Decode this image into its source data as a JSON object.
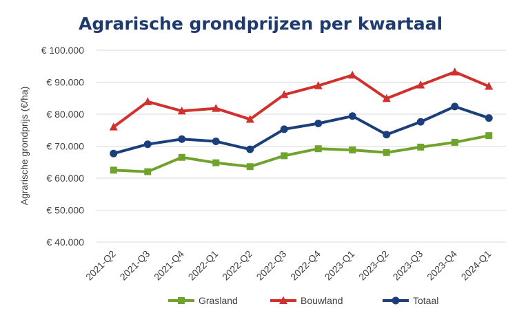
{
  "chart_data": {
    "type": "line",
    "title": "Agrarische grondprijzen per kwartaal",
    "xlabel": "",
    "ylabel": "Agrarische grondprijs (€/ha)",
    "ylim": [
      40000,
      100000
    ],
    "yticks": [
      40000,
      50000,
      60000,
      70000,
      80000,
      90000,
      100000
    ],
    "ytick_labels": [
      "€ 40.000",
      "€ 50.000",
      "€ 60.000",
      "€ 70.000",
      "€ 80.000",
      "€ 90.000",
      "€ 100.000"
    ],
    "grid": true,
    "legend_position": "bottom",
    "categories": [
      "2021-Q2",
      "2021-Q3",
      "2021-Q4",
      "2022-Q1",
      "2022-Q2",
      "2022-Q3",
      "2022-Q4",
      "2023-Q1",
      "2023-Q2",
      "2023-Q3",
      "2023-Q4",
      "2024-Q1"
    ],
    "series": [
      {
        "name": "Grasland",
        "color": "#70a32e",
        "marker": "square",
        "values": [
          62500,
          62000,
          66500,
          64800,
          63600,
          67000,
          69200,
          68800,
          68000,
          69700,
          71200,
          73300
        ]
      },
      {
        "name": "Bouwland",
        "color": "#d0312d",
        "marker": "triangle",
        "values": [
          76000,
          83900,
          81000,
          81800,
          78400,
          86100,
          88900,
          92200,
          84900,
          89100,
          93200,
          88700
        ]
      },
      {
        "name": "Totaal",
        "color": "#1b3f7a",
        "marker": "circle",
        "values": [
          67700,
          70600,
          72200,
          71500,
          69000,
          75300,
          77100,
          79400,
          73600,
          77600,
          82400,
          78800
        ]
      }
    ]
  }
}
